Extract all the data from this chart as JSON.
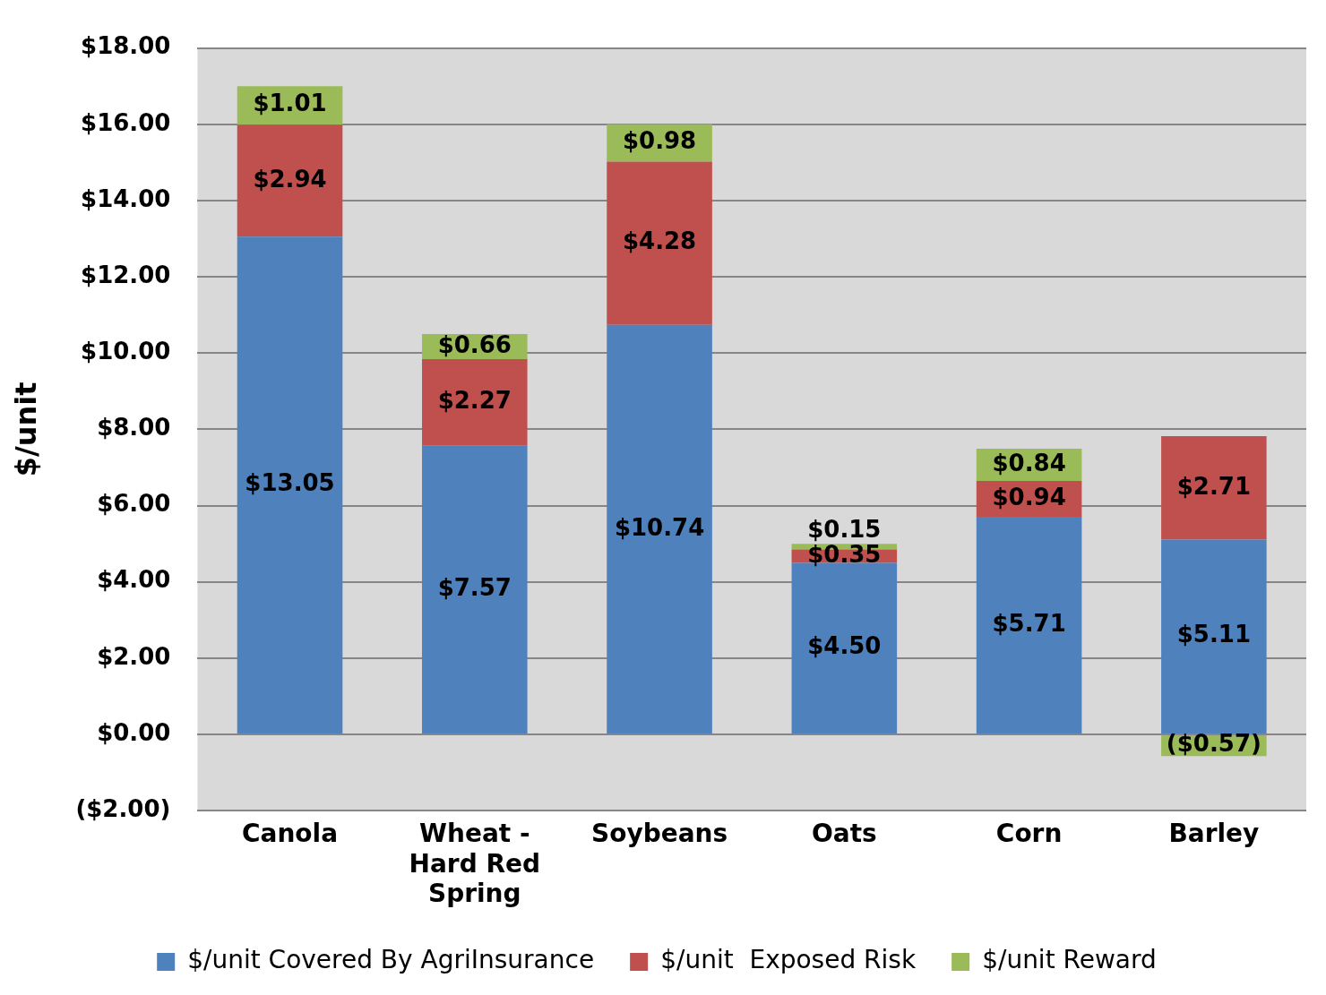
{
  "chart_data": {
    "type": "bar",
    "stacked": true,
    "ylabel": "$/unit",
    "categories": [
      "Canola",
      "Wheat - Hard Red Spring",
      "Soybeans",
      "Oats",
      "Corn",
      "Barley"
    ],
    "series": [
      {
        "name": "$/unit Covered By AgriInsurance",
        "color": "#4f81bd",
        "values": [
          13.05,
          7.57,
          10.74,
          4.5,
          5.71,
          5.11
        ],
        "value_labels": [
          "$13.05",
          "$7.57",
          "$10.74",
          "$4.50",
          "$5.71",
          "$5.11"
        ]
      },
      {
        "name": "$/unit  Exposed Risk",
        "color": "#c0504d",
        "values": [
          2.94,
          2.27,
          4.28,
          0.35,
          0.94,
          2.71
        ],
        "value_labels": [
          "$2.94",
          "$2.27",
          "$4.28",
          "$0.35",
          "$0.94",
          "$2.71"
        ]
      },
      {
        "name": "$/unit Reward",
        "color": "#9bbb59",
        "values": [
          1.01,
          0.66,
          0.98,
          0.15,
          0.84,
          -0.57
        ],
        "value_labels": [
          "$1.01",
          "$0.66",
          "$0.98",
          "$0.15",
          "$0.84",
          "($0.57)"
        ]
      }
    ],
    "ylim": [
      -2,
      18
    ],
    "yticks": [
      {
        "value": -2,
        "label": "($2.00)"
      },
      {
        "value": 0,
        "label": "$0.00"
      },
      {
        "value": 2,
        "label": "$2.00"
      },
      {
        "value": 4,
        "label": "$4.00"
      },
      {
        "value": 6,
        "label": "$6.00"
      },
      {
        "value": 8,
        "label": "$8.00"
      },
      {
        "value": 10,
        "label": "$10.00"
      },
      {
        "value": 12,
        "label": "$12.00"
      },
      {
        "value": 14,
        "label": "$14.00"
      },
      {
        "value": 16,
        "label": "$16.00"
      },
      {
        "value": 18,
        "label": "$18.00"
      }
    ],
    "grid": "y",
    "legend": "bottom"
  }
}
